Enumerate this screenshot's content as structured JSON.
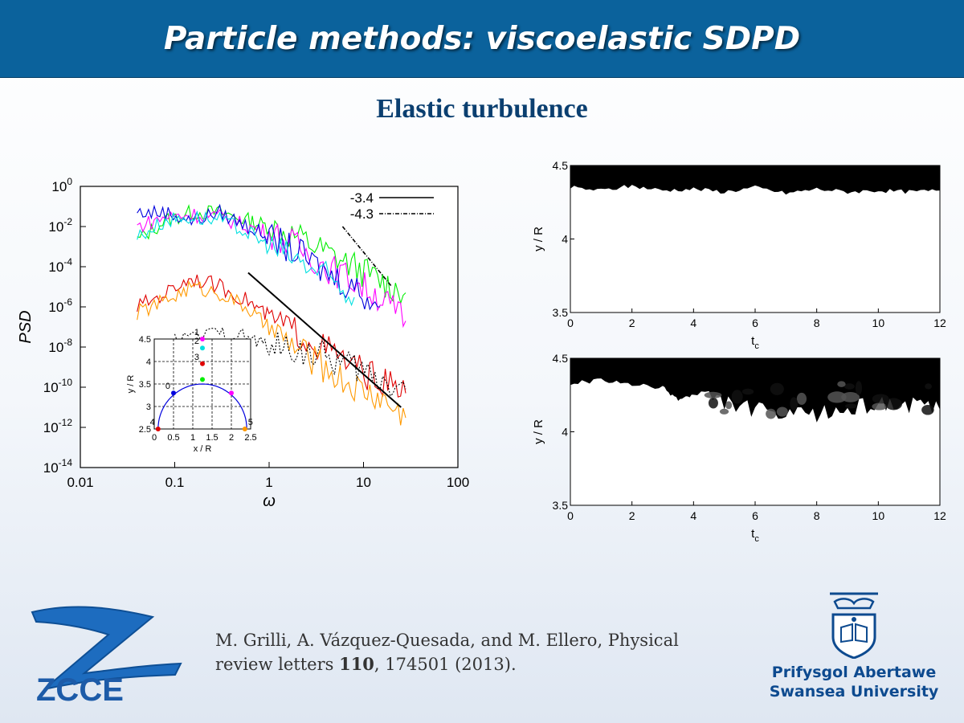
{
  "slide": {
    "title": "Particle methods: viscoelastic SDPD",
    "subtitle": "Elastic turbulence"
  },
  "citation": {
    "line1": "M. Grilli, A. Vázquez-Quesada, and M. Ellero, Physical",
    "line2_prefix": "review letters ",
    "volume": "110",
    "line2_suffix": ", 174501 (2013)."
  },
  "logos": {
    "zcce_text": "ZCCE",
    "university_welsh": "Prifysgol Abertawe",
    "university_english": "Swansea University"
  },
  "colors": {
    "banner": "#0b629c",
    "subtitle": "#0b3f70",
    "university": "#0d4a8f"
  },
  "chart_data": [
    {
      "type": "line",
      "xscale": "log",
      "yscale": "log",
      "xlabel": "ω",
      "ylabel": "PSD",
      "xlim": [
        0.01,
        100
      ],
      "ylim": [
        1e-14,
        1
      ],
      "x_ticks": [
        "0.01",
        "0.1",
        "1",
        "10",
        "100"
      ],
      "y_ticks": [
        "10",
        "10",
        "10",
        "10",
        "10",
        "10",
        "10",
        "10"
      ],
      "y_tick_exponents": [
        "-14",
        "-12",
        "-10",
        "-8",
        "-6",
        "-4",
        "-2",
        "0"
      ],
      "legend": [
        {
          "label": "-3.4",
          "style": "solid"
        },
        {
          "label": "-4.3",
          "style": "dash-dot"
        }
      ],
      "legend_position": "top-right",
      "series": [
        {
          "color": "#00ee00",
          "x": [
            0.04,
            0.08,
            0.15,
            0.3,
            0.6,
            1,
            2,
            4,
            8,
            15,
            28
          ],
          "values": [
            0.002,
            0.02,
            0.05,
            0.05,
            0.02,
            0.01,
            0.003,
            0.0005,
            0.0001,
            2e-05,
            5e-06
          ]
        },
        {
          "color": "#ff00ff",
          "x": [
            0.04,
            0.08,
            0.15,
            0.3,
            0.6,
            1,
            2,
            4,
            8,
            15,
            28
          ],
          "values": [
            0.01,
            0.03,
            0.04,
            0.03,
            0.01,
            0.005,
            0.001,
            0.0001,
            2e-05,
            3e-06,
            2e-07
          ]
        },
        {
          "color": "#0000dd",
          "x": [
            0.04,
            0.08,
            0.15,
            0.3,
            0.6,
            1,
            2,
            4,
            8,
            15
          ],
          "values": [
            0.05,
            0.05,
            0.02,
            0.05,
            0.01,
            0.003,
            0.0005,
            5e-05,
            1e-05,
            1e-06
          ]
        },
        {
          "color": "#00e0e0",
          "x": [
            0.04,
            0.08,
            0.15,
            0.3,
            0.6,
            1,
            2,
            4,
            8
          ],
          "values": [
            0.003,
            0.02,
            0.03,
            0.02,
            0.005,
            0.001,
            0.0002,
            3e-05,
            3e-06
          ]
        },
        {
          "color": "#e00000",
          "x": [
            0.04,
            0.08,
            0.15,
            0.3,
            0.6,
            1,
            2,
            4,
            8,
            15,
            28
          ],
          "values": [
            1e-06,
            5e-06,
            3e-05,
            1e-05,
            2e-06,
            3e-07,
            5e-08,
            8e-09,
            1e-09,
            2e-10,
            5e-11
          ]
        },
        {
          "color": "#ff9900",
          "x": [
            0.04,
            0.08,
            0.15,
            0.3,
            0.6,
            1,
            2,
            4,
            8,
            15,
            28
          ],
          "values": [
            5e-07,
            2e-06,
            1e-05,
            5e-06,
            8e-07,
            8e-08,
            8e-09,
            8e-10,
            1e-10,
            3e-11,
            3e-12
          ]
        },
        {
          "color": "#000000",
          "dashed": true,
          "x": [
            0.1,
            0.3,
            0.6,
            1,
            2,
            4,
            8,
            15,
            28
          ],
          "values": [
            2e-08,
            5e-08,
            3e-08,
            1e-08,
            8e-09,
            3e-09,
            1e-09,
            3e-10,
            8e-11
          ]
        }
      ],
      "reference_lines": [
        {
          "label": "-3.4",
          "x": [
            0.6,
            25
          ],
          "values": [
            5e-05,
            1e-11
          ]
        },
        {
          "label": "-4.3",
          "x": [
            6,
            20
          ],
          "values": [
            0.01,
            1e-05
          ]
        }
      ],
      "inset": {
        "xlabel": "x / R",
        "ylabel": "y / R",
        "xlim": [
          0,
          2.5
        ],
        "ylim": [
          2.5,
          4.5
        ],
        "x_ticks": [
          "0",
          "0.5",
          "1",
          "1.5",
          "2",
          "2.5"
        ],
        "y_ticks": [
          "2.5",
          "3",
          "3.5",
          "4",
          "4.5"
        ],
        "points": [
          {
            "label": "0",
            "x": 0.5,
            "y": 3.3,
            "color": "#0000dd"
          },
          {
            "label": "1",
            "x": 1.25,
            "y": 4.5,
            "color": "#ff00ff"
          },
          {
            "label": "2",
            "x": 1.25,
            "y": 4.3,
            "color": "#00e0e0"
          },
          {
            "label": "3",
            "x": 1.25,
            "y": 3.95,
            "color": "#e00000"
          },
          {
            "label": "4",
            "x": 0.1,
            "y": 2.5,
            "color": "#e00000"
          },
          {
            "label": "5",
            "x": 2.35,
            "y": 2.5,
            "color": "#ff9900"
          },
          {
            "label": "",
            "x": 1.25,
            "y": 3.6,
            "color": "#00ee00"
          },
          {
            "label": "",
            "x": 2.0,
            "y": 3.3,
            "color": "#ff00ff"
          }
        ]
      }
    },
    {
      "type": "heatmap",
      "xlabel": "t",
      "xlabel_sub": "c",
      "ylabel": "y / R",
      "xlim": [
        0,
        12
      ],
      "ylim": [
        3.5,
        4.5
      ],
      "x_ticks": [
        "0",
        "2",
        "4",
        "6",
        "8",
        "10",
        "12"
      ],
      "y_ticks": [
        "3.5",
        "4",
        "4.5"
      ],
      "boundary_x": [
        0,
        1,
        2,
        3,
        4,
        5,
        6,
        7,
        8,
        9,
        10,
        11,
        12
      ],
      "boundary_y": [
        4.35,
        4.33,
        4.36,
        4.33,
        4.34,
        4.32,
        4.35,
        4.31,
        4.34,
        4.32,
        4.33,
        4.32,
        4.33
      ]
    },
    {
      "type": "heatmap",
      "xlabel": "t",
      "xlabel_sub": "c",
      "ylabel": "y / R",
      "xlim": [
        0,
        12
      ],
      "ylim": [
        3.5,
        4.5
      ],
      "x_ticks": [
        "0",
        "2",
        "4",
        "6",
        "8",
        "10",
        "12"
      ],
      "y_ticks": [
        "3.5",
        "4",
        "4.5"
      ],
      "boundary_x": [
        0,
        1,
        2,
        3,
        3.5,
        4,
        5,
        6,
        7,
        8,
        9,
        10,
        11,
        12
      ],
      "boundary_y": [
        4.33,
        4.35,
        4.32,
        4.3,
        4.22,
        4.25,
        4.2,
        4.15,
        4.1,
        4.12,
        4.15,
        4.2,
        4.18,
        4.15
      ]
    }
  ]
}
